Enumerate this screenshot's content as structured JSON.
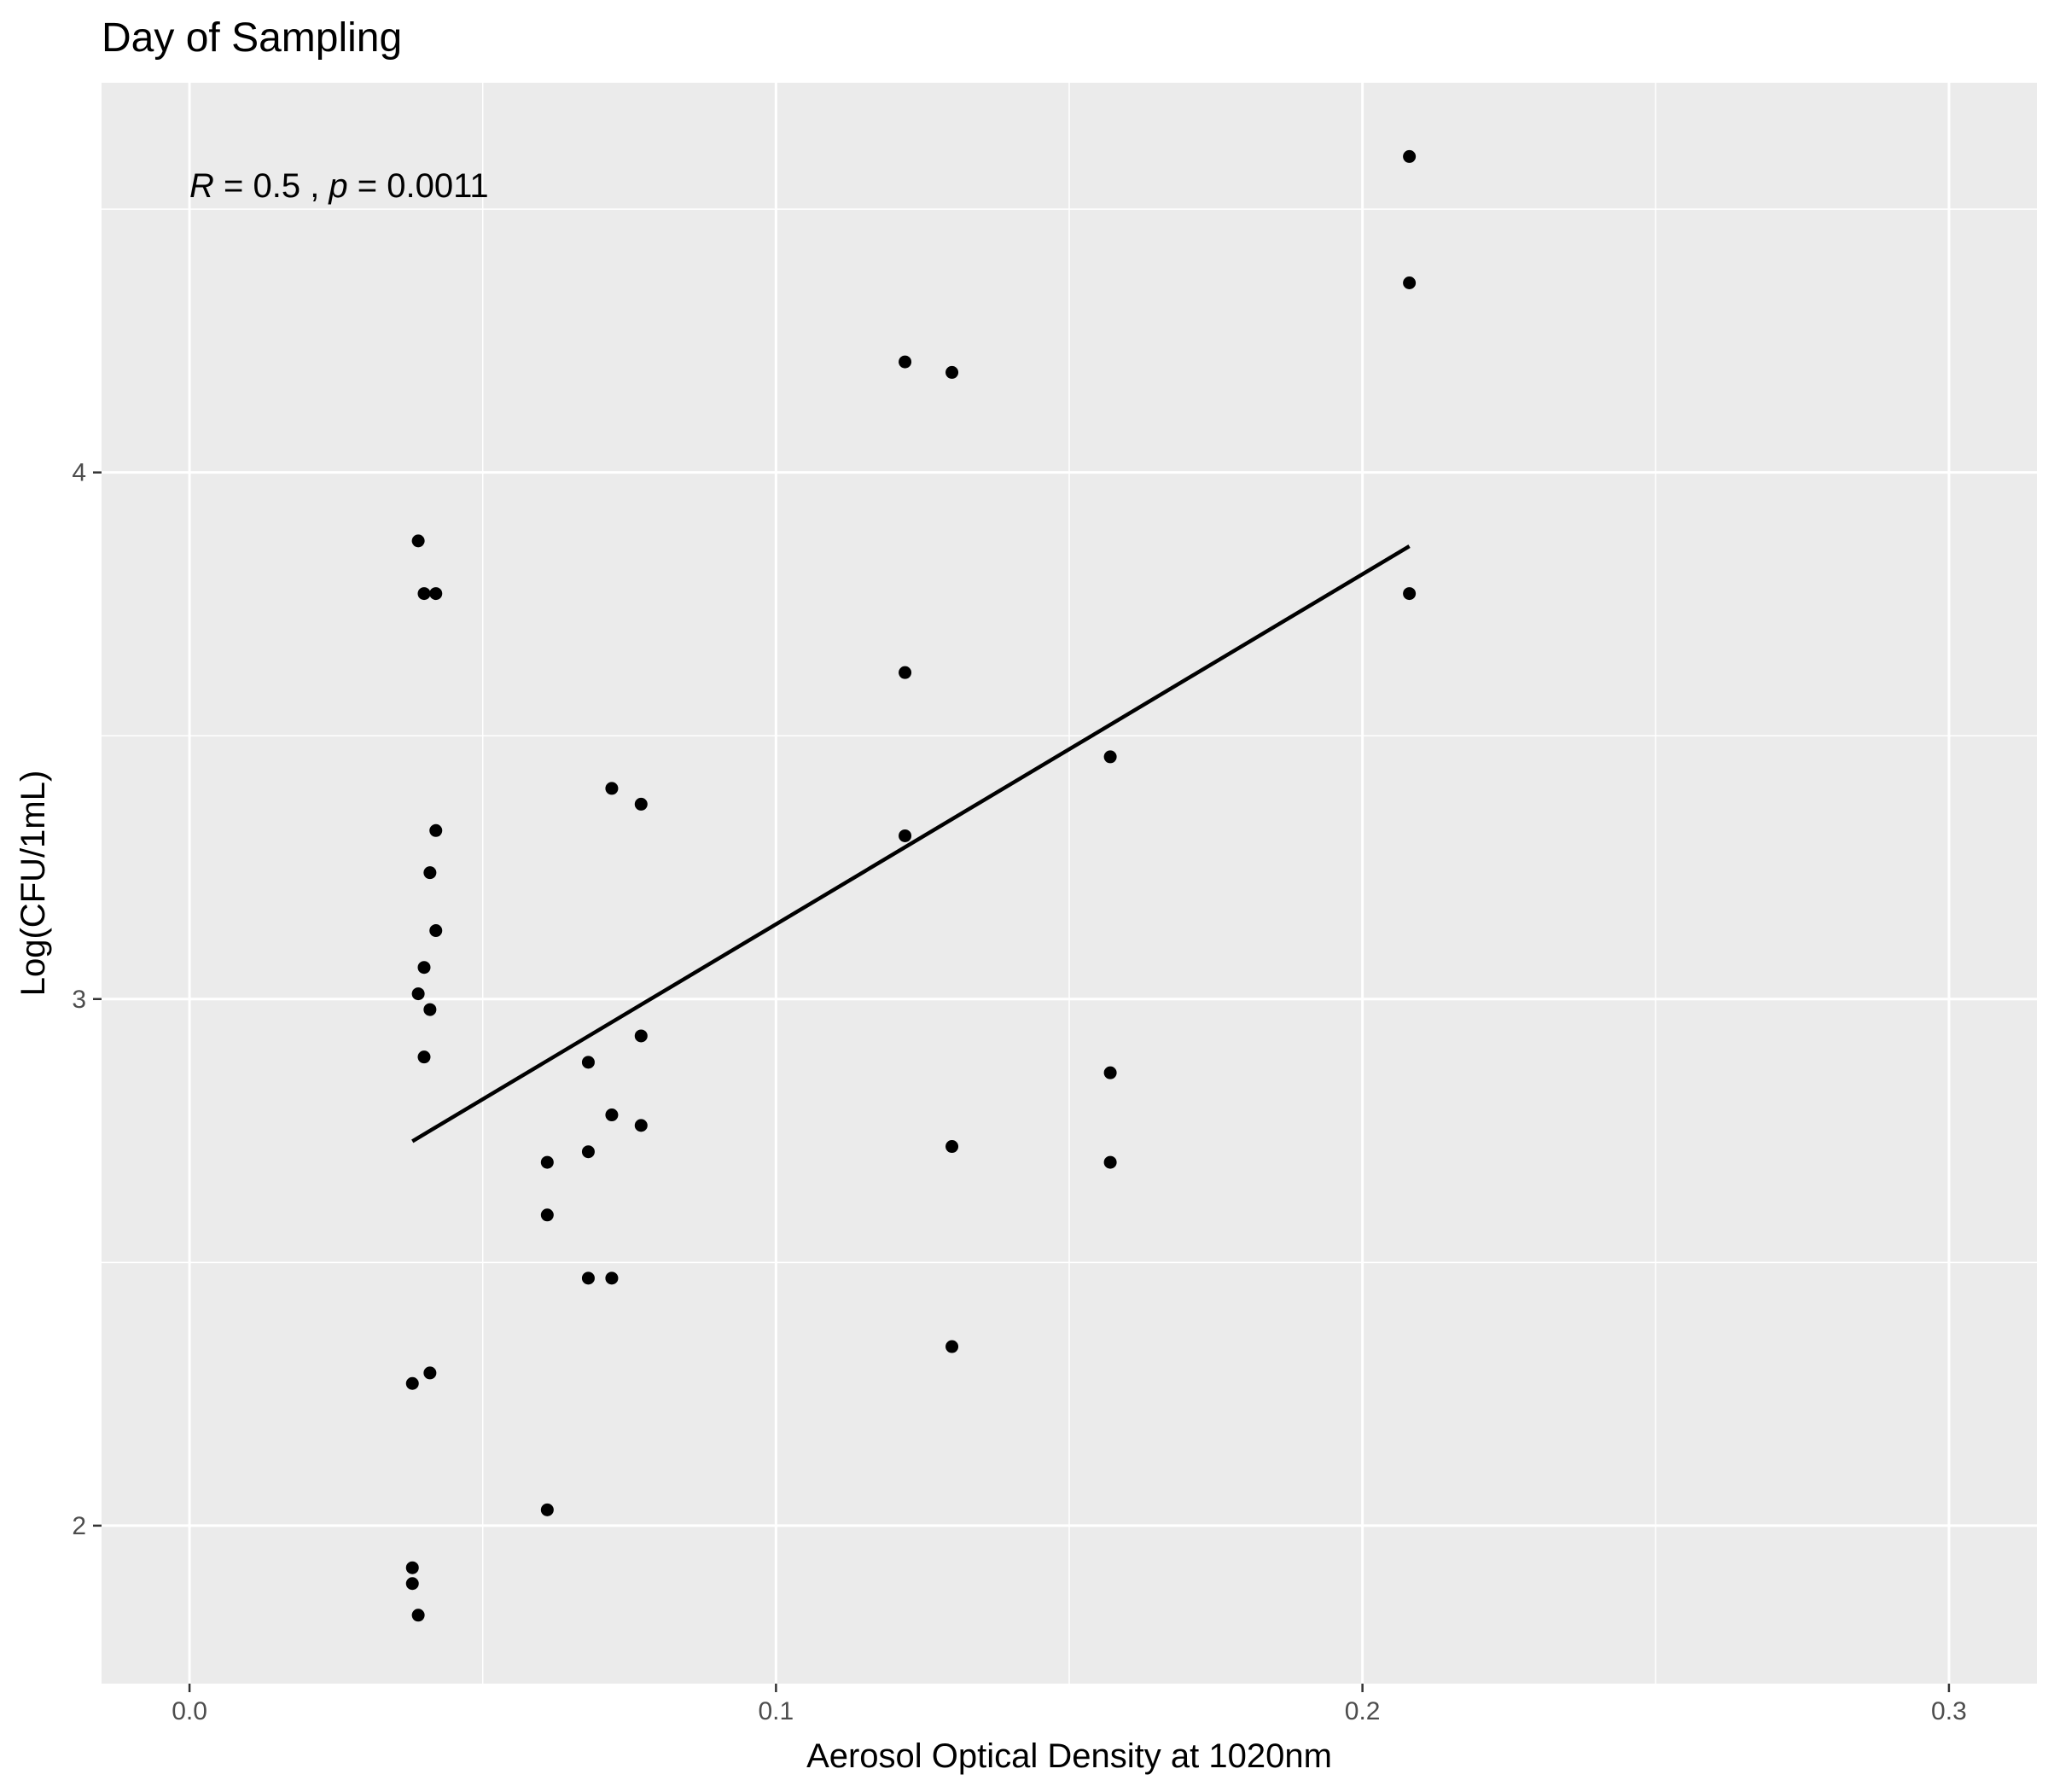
{
  "chart_data": {
    "type": "scatter",
    "title": "Day of Sampling",
    "xlabel": "Aerosol Optical Density at 1020nm",
    "ylabel": "Log(CFU/1mL)",
    "xlim": [
      -0.015,
      0.315
    ],
    "ylim": [
      1.7,
      4.74
    ],
    "x_ticks": [
      0.0,
      0.1,
      0.2,
      0.3
    ],
    "x_tick_labels": [
      "0.0",
      "0.1",
      "0.2",
      "0.3"
    ],
    "y_ticks": [
      2,
      3,
      4
    ],
    "y_tick_labels": [
      "2",
      "3",
      "4"
    ],
    "grid": true,
    "legend": "none",
    "colors": {
      "panel_background": "#ebebeb",
      "grid": "#ffffff",
      "points": "#000000",
      "fit_line": "#000000"
    },
    "annotation": {
      "r_symbol": "R",
      "r_text": " = 0.5 , ",
      "p_symbol": "p",
      "p_text": " = 0.0011"
    },
    "series": [
      {
        "points": [
          {
            "x": 0.038,
            "y": 1.92
          },
          {
            "x": 0.038,
            "y": 1.89
          },
          {
            "x": 0.038,
            "y": 2.27
          },
          {
            "x": 0.039,
            "y": 1.83
          },
          {
            "x": 0.039,
            "y": 3.87
          },
          {
            "x": 0.039,
            "y": 3.01
          },
          {
            "x": 0.04,
            "y": 3.77
          },
          {
            "x": 0.04,
            "y": 3.06
          },
          {
            "x": 0.04,
            "y": 2.89
          },
          {
            "x": 0.041,
            "y": 3.24
          },
          {
            "x": 0.041,
            "y": 2.98
          },
          {
            "x": 0.041,
            "y": 2.29
          },
          {
            "x": 0.042,
            "y": 3.77
          },
          {
            "x": 0.042,
            "y": 3.32
          },
          {
            "x": 0.042,
            "y": 3.13
          },
          {
            "x": 0.061,
            "y": 2.69
          },
          {
            "x": 0.061,
            "y": 2.59
          },
          {
            "x": 0.061,
            "y": 2.03
          },
          {
            "x": 0.068,
            "y": 2.88
          },
          {
            "x": 0.068,
            "y": 2.71
          },
          {
            "x": 0.068,
            "y": 2.47
          },
          {
            "x": 0.072,
            "y": 3.4
          },
          {
            "x": 0.072,
            "y": 2.78
          },
          {
            "x": 0.072,
            "y": 2.47
          },
          {
            "x": 0.077,
            "y": 3.37
          },
          {
            "x": 0.077,
            "y": 2.93
          },
          {
            "x": 0.077,
            "y": 2.76
          },
          {
            "x": 0.122,
            "y": 4.21
          },
          {
            "x": 0.122,
            "y": 3.62
          },
          {
            "x": 0.122,
            "y": 3.31
          },
          {
            "x": 0.13,
            "y": 4.19
          },
          {
            "x": 0.13,
            "y": 2.72
          },
          {
            "x": 0.13,
            "y": 2.34
          },
          {
            "x": 0.157,
            "y": 3.46
          },
          {
            "x": 0.157,
            "y": 2.86
          },
          {
            "x": 0.157,
            "y": 2.69
          },
          {
            "x": 0.208,
            "y": 4.6
          },
          {
            "x": 0.208,
            "y": 4.36
          },
          {
            "x": 0.208,
            "y": 3.77
          }
        ]
      }
    ],
    "fit_line": {
      "x": [
        0.038,
        0.208
      ],
      "y": [
        2.73,
        3.86
      ]
    }
  }
}
